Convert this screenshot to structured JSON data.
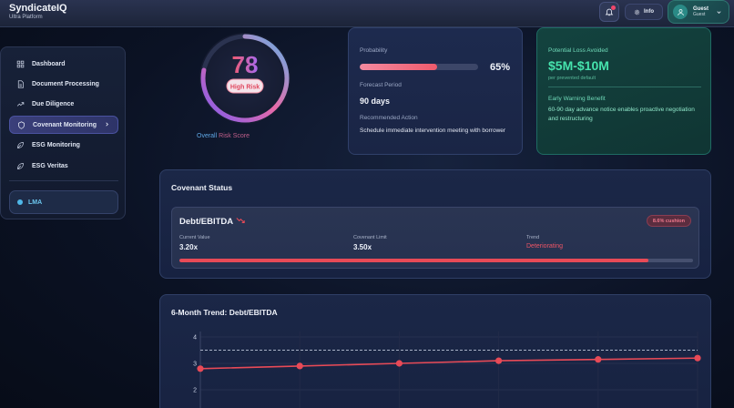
{
  "header": {
    "brand_title": "SyndicateIQ",
    "brand_subtitle": "Ultra Platform",
    "info_label": "Info",
    "user_name": "Guest",
    "user_role": "Guest"
  },
  "sidebar": {
    "items": [
      {
        "label": "Dashboard",
        "icon": "grid-icon",
        "active": false
      },
      {
        "label": "Document Processing",
        "icon": "document-icon",
        "active": false
      },
      {
        "label": "Due Diligence",
        "icon": "trend-icon",
        "active": false
      },
      {
        "label": "Covenant Monitoring",
        "icon": "shield-icon",
        "active": true
      },
      {
        "label": "ESG Monitoring",
        "icon": "leaf-icon",
        "active": false
      },
      {
        "label": "ESG Veritas",
        "icon": "leaf-icon",
        "active": false
      }
    ],
    "lma_label": "LMA"
  },
  "risk": {
    "score": "78",
    "badge": "High Risk",
    "caption_part1": "Overall",
    "caption_part2": " Risk Score",
    "level": 0.78
  },
  "probability": {
    "label": "Probability",
    "value": "65%",
    "fraction": 0.65,
    "forecast_label": "Forecast Period",
    "forecast_value": "90 days",
    "action_label": "Recommended Action",
    "action_value": "Schedule immediate intervention meeting with borrower"
  },
  "loss": {
    "label": "Potential Loss Avoided",
    "value": "$5M-$10M",
    "sub": "per prevented default",
    "benefit_label": "Early Warning Benefit",
    "benefit_text": "60-90 day advance notice enables proactive negotiation and restructuring"
  },
  "covenant": {
    "title": "Covenant Status",
    "metric": "Debt/EBITDA",
    "cushion": "8.6% cushion",
    "current_label": "Current Value",
    "current_value": "3.20x",
    "limit_label": "Covenant Limit",
    "limit_value": "3.50x",
    "trend_label": "Trend",
    "trend_value": "Deteriorating",
    "usage": 0.914
  },
  "trend": {
    "title": "6-Month Trend: Debt/EBITDA"
  },
  "chart_data": {
    "type": "line",
    "title": "6-Month Trend: Debt/EBITDA",
    "y_ticks": [
      "4",
      "3",
      "2"
    ],
    "ylim": [
      1.5,
      4.3
    ],
    "limit_line": 3.5,
    "series": [
      {
        "values": [
          2.8,
          2.9,
          3.0,
          3.1,
          3.15,
          3.2
        ]
      }
    ],
    "colors": {
      "line": "#e84a57",
      "limit": "#a7b0c6"
    }
  }
}
